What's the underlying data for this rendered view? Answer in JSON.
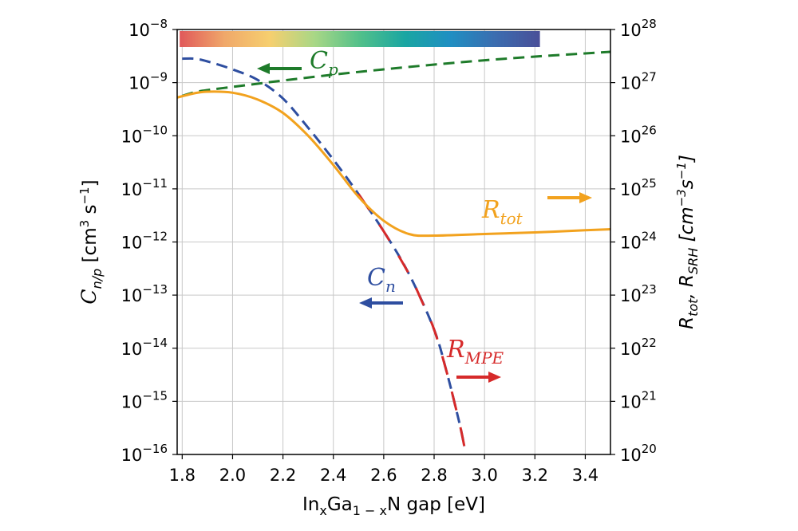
{
  "chart_data": {
    "type": "line",
    "xlabel": {
      "pre": "In",
      "s1": "x",
      "mid": "Ga",
      "s2": "1 − x",
      "post": "N  gap [eV]"
    },
    "ylabel_left": {
      "pre": "C",
      "sub": "n/p",
      "unit": " [cm",
      "sup1": "3",
      "unit2": " s",
      "sup2": "−1",
      "end": "]"
    },
    "ylabel_right": {
      "r1": "R",
      "r1sub": "tot",
      "sep": ", ",
      "r2": "R",
      "r2sub": "SRH",
      "unit": "  [cm",
      "sup1": "−3",
      "unit2": "s",
      "sup2": "−1",
      "end": "]"
    },
    "x_range": [
      1.78,
      3.5
    ],
    "x_ticks": [
      "1.8",
      "2.0",
      "2.2",
      "2.4",
      "2.6",
      "2.8",
      "3.0",
      "3.2",
      "3.4"
    ],
    "y_left_log_range": [
      -16,
      -8
    ],
    "y_left_ticks": [
      {
        "exp": -16,
        "base": "10",
        "sup": "−16"
      },
      {
        "exp": -15,
        "base": "10",
        "sup": "−15"
      },
      {
        "exp": -14,
        "base": "10",
        "sup": "−14"
      },
      {
        "exp": -13,
        "base": "10",
        "sup": "−13"
      },
      {
        "exp": -12,
        "base": "10",
        "sup": "−12"
      },
      {
        "exp": -11,
        "base": "10",
        "sup": "−11"
      },
      {
        "exp": -10,
        "base": "10",
        "sup": "−10"
      },
      {
        "exp": -9,
        "base": "10",
        "sup": "−9"
      },
      {
        "exp": -8,
        "base": "10",
        "sup": "−8"
      }
    ],
    "y_right_log_range": [
      20,
      28
    ],
    "y_right_ticks": [
      {
        "exp": 20,
        "base": "10",
        "sup": "20"
      },
      {
        "exp": 21,
        "base": "10",
        "sup": "21"
      },
      {
        "exp": 22,
        "base": "10",
        "sup": "22"
      },
      {
        "exp": 23,
        "base": "10",
        "sup": "23"
      },
      {
        "exp": 24,
        "base": "10",
        "sup": "24"
      },
      {
        "exp": 25,
        "base": "10",
        "sup": "25"
      },
      {
        "exp": 26,
        "base": "10",
        "sup": "26"
      },
      {
        "exp": 27,
        "base": "10",
        "sup": "27"
      },
      {
        "exp": 28,
        "base": "10",
        "sup": "28"
      }
    ],
    "grid": true,
    "log_scale": true,
    "colorbar": {
      "x_range": [
        1.79,
        3.22
      ],
      "stops": [
        "#e0595a",
        "#f0a86a",
        "#f6cf6f",
        "#a8d786",
        "#52c08a",
        "#1aa6a2",
        "#1f8fc2",
        "#3b6db0",
        "#4a4f98"
      ]
    },
    "series": [
      {
        "name": "C_p",
        "axis": "left",
        "color": "#1e7b2a",
        "style": "dashed",
        "x": [
          1.8,
          1.85,
          1.9,
          2.0,
          2.1,
          2.2,
          2.4,
          2.6,
          2.8,
          3.0,
          3.2,
          3.4,
          3.5
        ],
        "y_exp": [
          -9.25,
          -9.18,
          -9.14,
          -9.08,
          -9.02,
          -8.96,
          -8.85,
          -8.75,
          -8.66,
          -8.58,
          -8.51,
          -8.45,
          -8.42
        ]
      },
      {
        "name": "C_n",
        "axis": "left",
        "color": "#2e4ea0",
        "style": "dashed",
        "x": [
          1.8,
          1.85,
          1.9,
          2.0,
          2.1,
          2.2,
          2.3,
          2.4,
          2.5,
          2.6,
          2.7,
          2.8,
          2.85,
          2.9,
          2.92
        ],
        "y_exp": [
          -8.55,
          -8.55,
          -8.6,
          -8.75,
          -8.95,
          -9.3,
          -9.85,
          -10.45,
          -11.1,
          -11.8,
          -12.6,
          -13.65,
          -14.45,
          -15.4,
          -15.85
        ]
      },
      {
        "name": "R_MPE",
        "axis": "left",
        "color": "#d62a2a",
        "style": "dashed",
        "x": [
          2.5,
          2.6,
          2.7,
          2.75,
          2.8,
          2.85,
          2.9,
          2.92
        ],
        "y_exp": [
          -11.1,
          -11.8,
          -12.6,
          -13.1,
          -13.65,
          -14.45,
          -15.4,
          -15.85
        ]
      },
      {
        "name": "R_tot",
        "axis": "right",
        "color": "#f2a21e",
        "style": "solid",
        "x": [
          1.78,
          1.85,
          1.9,
          2.0,
          2.1,
          2.2,
          2.3,
          2.4,
          2.5,
          2.6,
          2.7,
          2.8,
          3.0,
          3.2,
          3.4,
          3.5
        ],
        "y_exp": [
          26.72,
          26.8,
          26.83,
          26.81,
          26.68,
          26.43,
          26.0,
          25.45,
          24.85,
          24.4,
          24.15,
          24.12,
          24.15,
          24.18,
          24.22,
          24.24
        ]
      }
    ],
    "annotations": [
      {
        "name": "C_p",
        "main": "C",
        "sub": "p",
        "color": "#1e7b2a",
        "arrow": "left"
      },
      {
        "name": "C_n",
        "main": "C",
        "sub": "n",
        "color": "#2e4ea0",
        "arrow": "left"
      },
      {
        "name": "R_tot",
        "main": "R",
        "sub": "tot",
        "color": "#f2a21e",
        "arrow": "right"
      },
      {
        "name": "R_MPE",
        "main": "R",
        "sub": "MPE",
        "color": "#d62a2a",
        "arrow": "right"
      }
    ]
  }
}
